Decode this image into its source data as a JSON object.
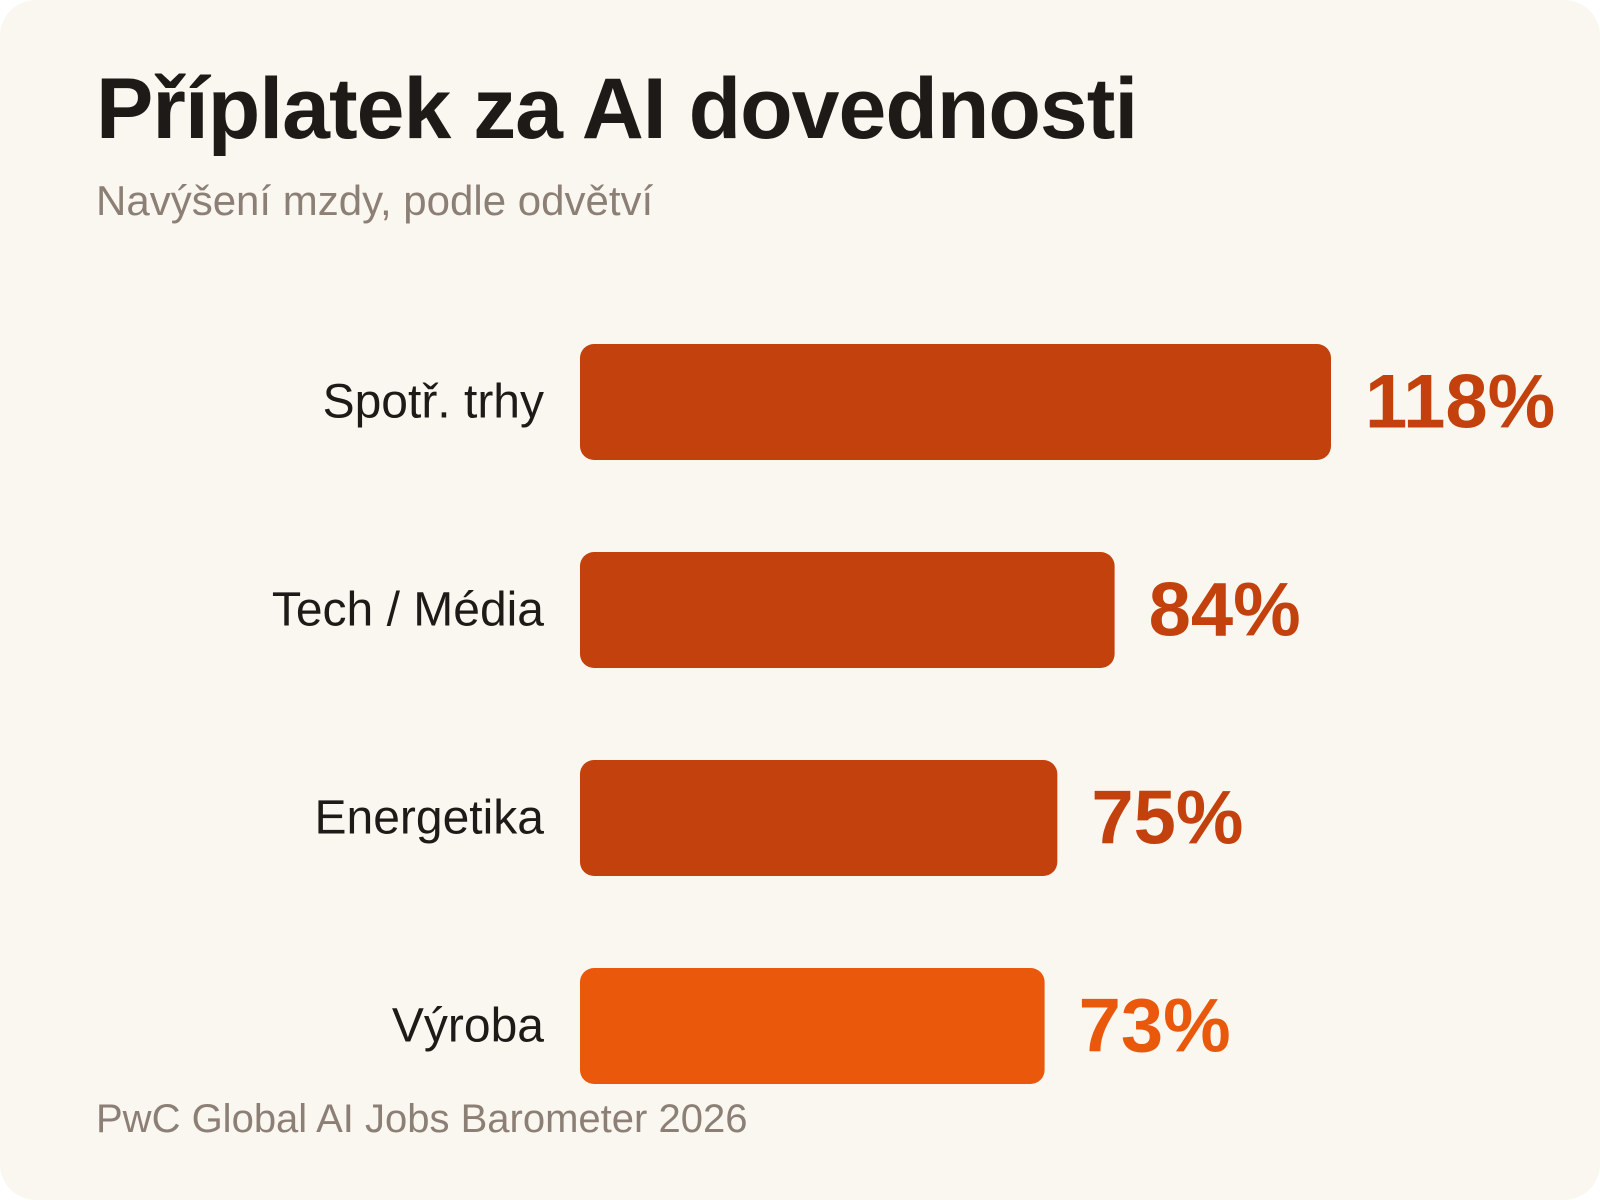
{
  "header": {
    "title": "Příplatek za AI dovednosti",
    "subtitle": "Navýšení mzdy, podle odvětví"
  },
  "footer": {
    "source": "PwC Global AI Jobs Barometer 2026"
  },
  "colors": {
    "background": "#faf6f0",
    "bar_primary": "#c2410c",
    "bar_highlight": "#ea580c",
    "text_dark": "#1e1a17",
    "text_muted": "#8c8076"
  },
  "chart_data": {
    "type": "bar",
    "orientation": "horizontal",
    "title": "Příplatek za AI dovednosti",
    "subtitle": "Navýšení mzdy, podle odvětví",
    "categories": [
      "Spotř. trhy",
      "Tech / Média",
      "Energetika",
      "Výroba"
    ],
    "values": [
      118,
      84,
      75,
      73
    ],
    "value_labels": [
      "118%",
      "84%",
      "75%",
      "73%"
    ],
    "unit": "%",
    "highlight_index": 3,
    "xlim": [
      0,
      118
    ],
    "grid": false,
    "legend": "none"
  }
}
